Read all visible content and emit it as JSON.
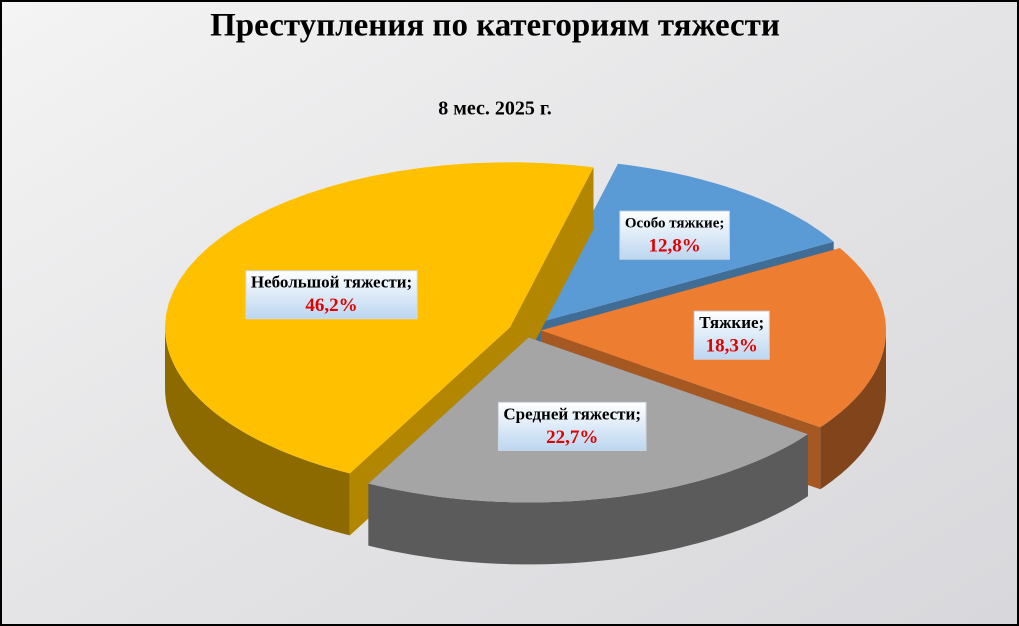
{
  "chart_data": {
    "type": "pie",
    "title": "Преступления по категориям тяжести",
    "subtitle": "8 мес. 2025 г.",
    "categories": [
      "Особо тяжкие;",
      "Тяжкие;",
      "Средней тяжести;",
      "Небольшой тяжести;"
    ],
    "values": [
      12.8,
      18.3,
      22.7,
      46.2
    ],
    "value_labels": [
      "12,8%",
      "18,3%",
      "22,7%",
      "46,2%"
    ],
    "colors": [
      "#5b9bd5",
      "#ed7d31",
      "#a5a5a5",
      "#ffc000"
    ]
  }
}
